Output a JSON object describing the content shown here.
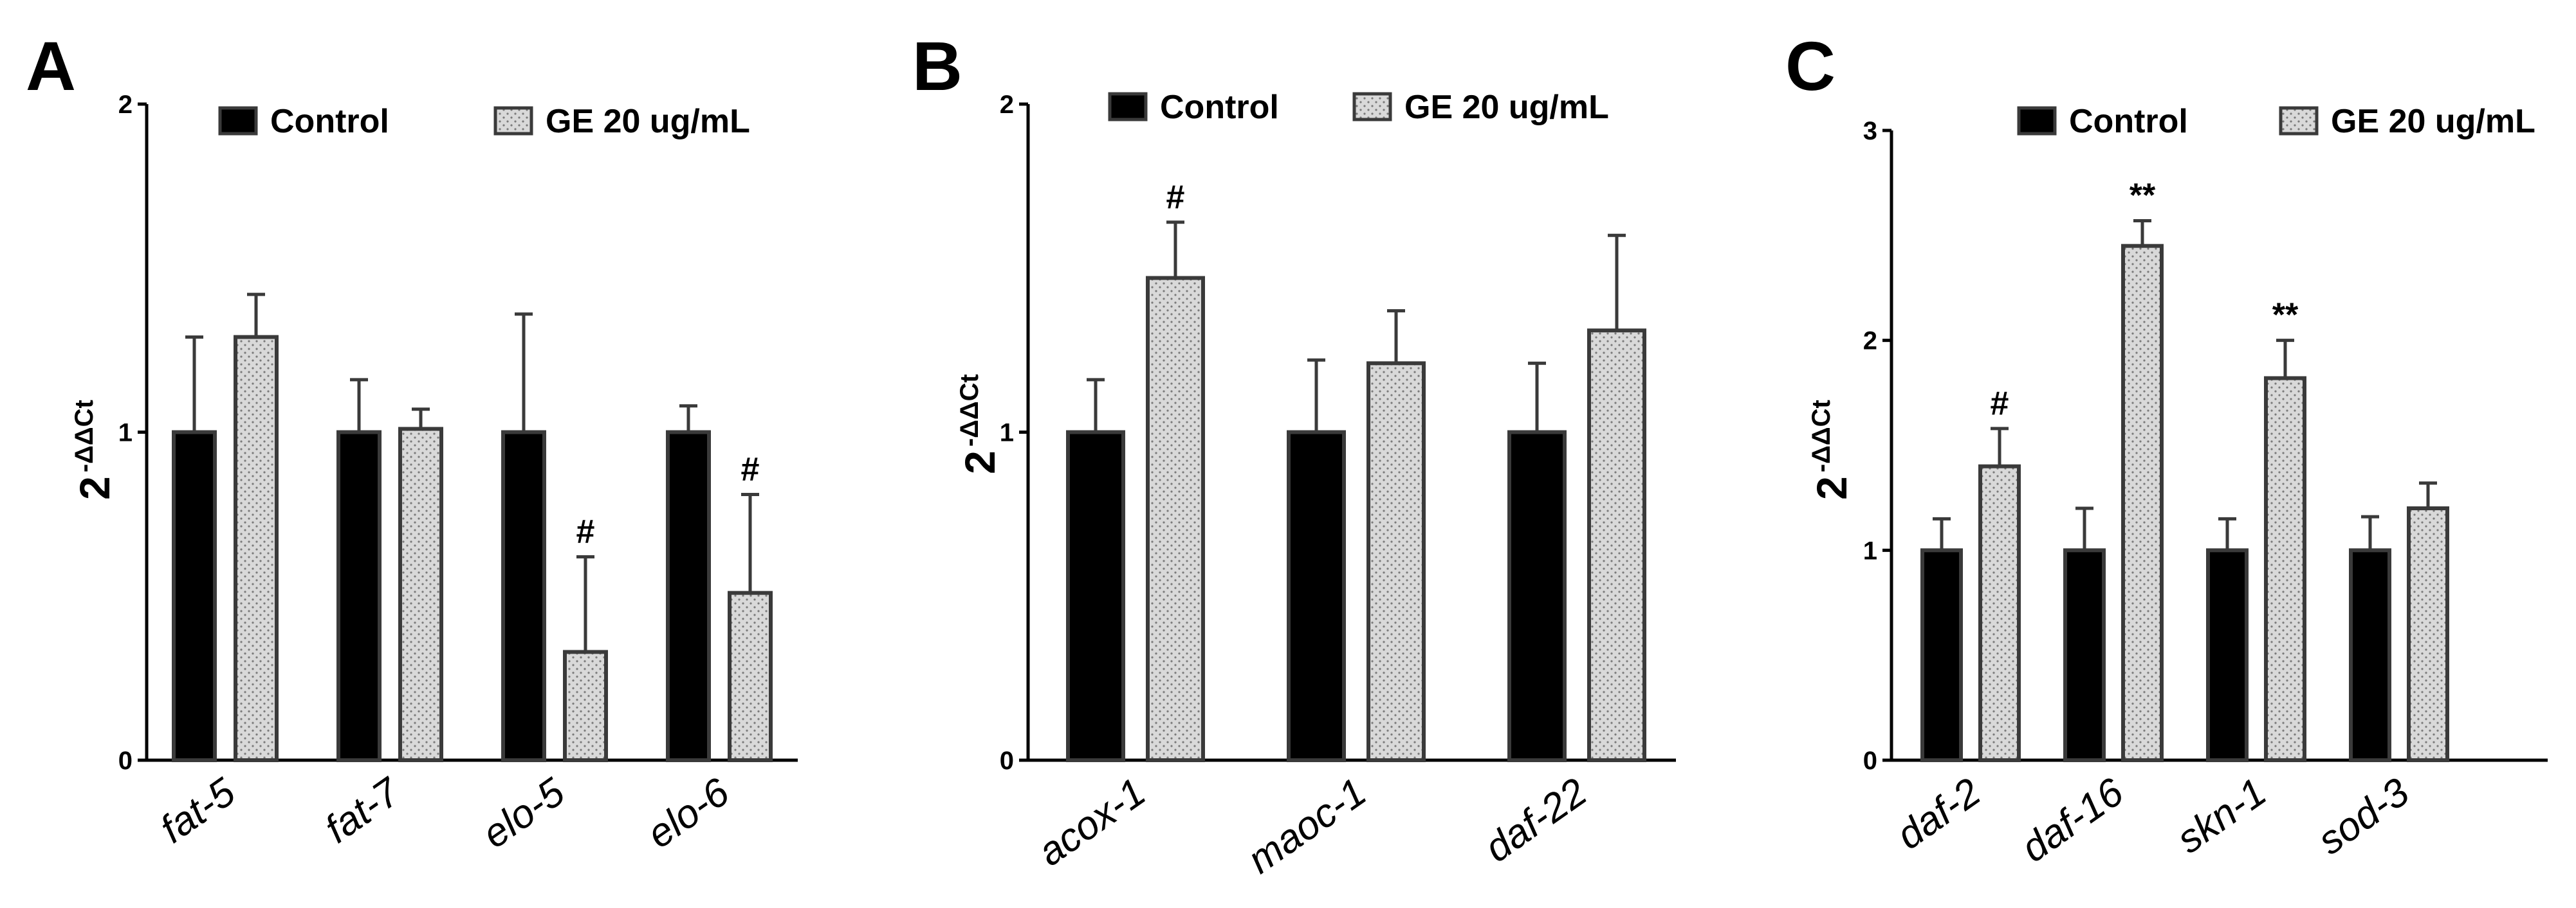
{
  "colors": {
    "control_fill": "#000000",
    "treatment_fill": "#d9d9d9",
    "treatment_dot": "#7a7a7a",
    "bar_stroke": "#3a3a3a",
    "axis": "#000000"
  },
  "chart_data": [
    {
      "panel": "A",
      "type": "bar",
      "ylabel_base": "2",
      "ylabel_exp": "-ΔΔCt",
      "ylim": [
        0,
        2
      ],
      "yticks": [
        "0",
        "1",
        "2"
      ],
      "categories": [
        "fat-5",
        "fat-7",
        "elo-5",
        "elo-6"
      ],
      "legend": [
        "Control",
        "GE 20 ug/mL"
      ],
      "series": [
        {
          "name": "Control",
          "values": [
            1.0,
            1.0,
            1.0,
            1.0
          ],
          "errors": [
            0.29,
            0.16,
            0.36,
            0.08
          ]
        },
        {
          "name": "GE 20 ug/mL",
          "values": [
            1.29,
            1.01,
            0.33,
            0.51
          ],
          "errors": [
            0.13,
            0.06,
            0.29,
            0.3
          ]
        }
      ],
      "annotations": [
        {
          "category": "elo-5",
          "series": "GE 20 ug/mL",
          "text": "#"
        },
        {
          "category": "elo-6",
          "series": "GE 20 ug/mL",
          "text": "#"
        }
      ]
    },
    {
      "panel": "B",
      "type": "bar",
      "ylabel_base": "2",
      "ylabel_exp": "-ΔΔCt",
      "ylim": [
        0,
        2
      ],
      "yticks": [
        "0",
        "1",
        "2"
      ],
      "categories": [
        "acox-1",
        "maoc-1",
        "daf-22"
      ],
      "legend": [
        "Control",
        "GE 20 ug/mL"
      ],
      "series": [
        {
          "name": "Control",
          "values": [
            1.0,
            1.0,
            1.0
          ],
          "errors": [
            0.16,
            0.22,
            0.21
          ]
        },
        {
          "name": "GE 20 ug/mL",
          "values": [
            1.47,
            1.21,
            1.31
          ],
          "errors": [
            0.17,
            0.16,
            0.29
          ]
        }
      ],
      "annotations": [
        {
          "category": "acox-1",
          "series": "GE 20 ug/mL",
          "text": "#"
        }
      ]
    },
    {
      "panel": "C",
      "type": "bar",
      "ylabel_base": "2",
      "ylabel_exp": "-ΔΔCt",
      "ylim": [
        0,
        3
      ],
      "yticks": [
        "0",
        "1",
        "2",
        "3"
      ],
      "categories": [
        "daf-2",
        "daf-16",
        "skn-1",
        "sod-3"
      ],
      "legend": [
        "Control",
        "GE 20 ug/mL"
      ],
      "series": [
        {
          "name": "Control",
          "values": [
            1.0,
            1.0,
            1.0,
            1.0
          ],
          "errors": [
            0.15,
            0.2,
            0.15,
            0.16
          ]
        },
        {
          "name": "GE 20 ug/mL",
          "values": [
            1.4,
            2.45,
            1.82,
            1.2
          ],
          "errors": [
            0.18,
            0.12,
            0.18,
            0.12
          ]
        }
      ],
      "annotations": [
        {
          "category": "daf-2",
          "series": "GE 20 ug/mL",
          "text": "#"
        },
        {
          "category": "daf-16",
          "series": "GE 20 ug/mL",
          "text": "**"
        },
        {
          "category": "skn-1",
          "series": "GE 20 ug/mL",
          "text": "**"
        }
      ]
    }
  ]
}
